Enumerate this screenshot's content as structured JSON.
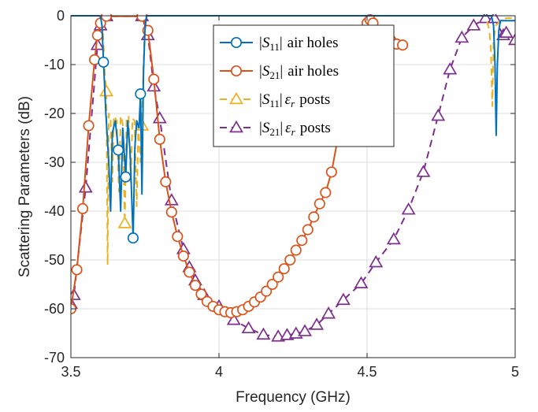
{
  "chart_data": {
    "type": "line",
    "xlabel": "Frequency (GHz)",
    "ylabel": "Scattering Parameters (dB)",
    "xlim": [
      3.5,
      5
    ],
    "ylim": [
      -70,
      0
    ],
    "xticks": [
      "3.5",
      "4",
      "4.5",
      "5"
    ],
    "yticks": [
      "0",
      "-10",
      "-20",
      "-30",
      "-40",
      "-50",
      "-60",
      "-70"
    ],
    "grid": true,
    "legend_position": "top-right",
    "series": [
      {
        "name": "|S11| air holes",
        "name_parts": {
          "sym": "S",
          "sub": "11",
          "rest": "air holes"
        },
        "color": "#0072BD",
        "dash": "solid",
        "marker": "circle",
        "markers": [
          [
            3.61,
            -9.5
          ],
          [
            3.66,
            -27.5
          ],
          [
            3.685,
            -33
          ],
          [
            3.71,
            -45.5
          ],
          [
            3.735,
            -16
          ]
        ],
        "values": [
          [
            3.5,
            0
          ],
          [
            3.595,
            0
          ],
          [
            3.6,
            -0.2
          ],
          [
            3.605,
            -2
          ],
          [
            3.61,
            -9.5
          ],
          [
            3.618,
            -20
          ],
          [
            3.628,
            -30
          ],
          [
            3.634,
            -40
          ],
          [
            3.64,
            -24
          ],
          [
            3.65,
            -21.5
          ],
          [
            3.66,
            -27.5
          ],
          [
            3.668,
            -40
          ],
          [
            3.675,
            -23
          ],
          [
            3.685,
            -33
          ],
          [
            3.692,
            -21.5
          ],
          [
            3.7,
            -28
          ],
          [
            3.71,
            -45.5
          ],
          [
            3.716,
            -27
          ],
          [
            3.722,
            -21.5
          ],
          [
            3.73,
            -23
          ],
          [
            3.735,
            -16
          ],
          [
            3.74,
            -36.5
          ],
          [
            3.745,
            -12
          ],
          [
            3.75,
            -3
          ],
          [
            3.755,
            0
          ],
          [
            4.92,
            0
          ],
          [
            4.927,
            -2
          ],
          [
            4.932,
            -10
          ],
          [
            4.936,
            -24.5
          ],
          [
            4.94,
            -10
          ],
          [
            4.945,
            -3
          ],
          [
            4.95,
            -1
          ],
          [
            5,
            -1
          ]
        ]
      },
      {
        "name": "|S21| air holes",
        "name_parts": {
          "sym": "S",
          "sub": "21",
          "rest": "air holes"
        },
        "color": "#D95319",
        "dash": "solid",
        "marker": "circle",
        "values": [
          [
            3.5,
            -60
          ],
          [
            3.52,
            -52
          ],
          [
            3.54,
            -39.5
          ],
          [
            3.56,
            -22.5
          ],
          [
            3.58,
            -9
          ],
          [
            3.59,
            -4
          ],
          [
            3.6,
            -1.5
          ],
          [
            3.62,
            -0.1
          ],
          [
            3.74,
            -0.1
          ],
          [
            3.76,
            -3
          ],
          [
            3.78,
            -13
          ],
          [
            3.8,
            -25.3
          ],
          [
            3.82,
            -34
          ],
          [
            3.84,
            -40.2
          ],
          [
            3.86,
            -45.2
          ],
          [
            3.88,
            -49.2
          ],
          [
            3.9,
            -52.5
          ],
          [
            3.92,
            -55.2
          ],
          [
            3.94,
            -57
          ],
          [
            3.96,
            -58.5
          ],
          [
            3.98,
            -59.5
          ],
          [
            4.0,
            -60.2
          ],
          [
            4.02,
            -60.6
          ],
          [
            4.04,
            -60.8
          ],
          [
            4.06,
            -60.6
          ],
          [
            4.08,
            -60.2
          ],
          [
            4.1,
            -59.5
          ],
          [
            4.12,
            -58.6
          ],
          [
            4.14,
            -57.6
          ],
          [
            4.16,
            -56.4
          ],
          [
            4.18,
            -55
          ],
          [
            4.2,
            -53.5
          ],
          [
            4.22,
            -51.8
          ],
          [
            4.24,
            -50
          ],
          [
            4.26,
            -48
          ],
          [
            4.28,
            -46
          ],
          [
            4.3,
            -43.8
          ],
          [
            4.32,
            -41.2
          ],
          [
            4.34,
            -38.5
          ],
          [
            4.36,
            -36.2
          ],
          [
            4.38,
            -32
          ],
          [
            4.4,
            -25.5
          ],
          [
            4.42,
            -21
          ],
          [
            4.44,
            -15
          ],
          [
            4.46,
            -9.5
          ],
          [
            4.48,
            -4
          ],
          [
            4.5,
            -1.5
          ],
          [
            4.51,
            -0.8
          ],
          [
            4.52,
            -1.5
          ],
          [
            4.54,
            -3
          ],
          [
            4.56,
            -4
          ],
          [
            4.58,
            -5
          ],
          [
            4.6,
            -5.8
          ],
          [
            4.62,
            -6
          ]
        ]
      },
      {
        "name": "|S11| εr posts",
        "name_parts": {
          "sym": "S",
          "sub": "11",
          "rest": "posts"
        },
        "color": "#EDB120",
        "dash": "dashed",
        "marker": "triangle",
        "markers": [
          [
            3.62,
            -15.5
          ],
          [
            3.682,
            -42.5
          ],
          [
            3.74,
            -22.5
          ]
        ],
        "values": [
          [
            3.5,
            0
          ],
          [
            3.6,
            0
          ],
          [
            3.608,
            -3
          ],
          [
            3.615,
            -12
          ],
          [
            3.62,
            -15.5
          ],
          [
            3.624,
            -51
          ],
          [
            3.628,
            -20
          ],
          [
            3.634,
            -21
          ],
          [
            3.64,
            -34
          ],
          [
            3.645,
            -20.5
          ],
          [
            3.655,
            -21.5
          ],
          [
            3.662,
            -36
          ],
          [
            3.668,
            -20.5
          ],
          [
            3.675,
            -22
          ],
          [
            3.682,
            -42.5
          ],
          [
            3.688,
            -21
          ],
          [
            3.695,
            -20.5
          ],
          [
            3.702,
            -34
          ],
          [
            3.708,
            -21
          ],
          [
            3.715,
            -21.5
          ],
          [
            3.722,
            -39
          ],
          [
            3.728,
            -22.5
          ],
          [
            3.735,
            -30
          ],
          [
            3.74,
            -22.5
          ],
          [
            3.745,
            -10
          ],
          [
            3.75,
            -2
          ],
          [
            3.755,
            0
          ],
          [
            4.9,
            0
          ],
          [
            4.913,
            -3
          ],
          [
            4.918,
            -7
          ],
          [
            4.923,
            -18.5
          ],
          [
            4.927,
            -5
          ],
          [
            4.935,
            -2
          ],
          [
            4.95,
            -1
          ],
          [
            4.97,
            -0.5
          ],
          [
            5,
            -0.5
          ]
        ]
      },
      {
        "name": "|S21| εr posts",
        "name_parts": {
          "sym": "S",
          "sub": "21",
          "rest": "posts"
        },
        "color": "#7E2F8E",
        "dash": "dashed",
        "marker": "triangle",
        "values": [
          [
            3.5,
            -59
          ],
          [
            3.51,
            -57.2
          ],
          [
            3.55,
            -35.2
          ],
          [
            3.59,
            -6
          ],
          [
            3.6,
            -2
          ],
          [
            3.62,
            -0.1
          ],
          [
            3.74,
            -0.1
          ],
          [
            3.76,
            -4
          ],
          [
            3.78,
            -14.5
          ],
          [
            3.8,
            -21
          ],
          [
            3.84,
            -37.8
          ],
          [
            3.88,
            -47.8
          ],
          [
            3.9,
            -51.5
          ],
          [
            3.92,
            -54.2
          ],
          [
            3.95,
            -57.2
          ],
          [
            4.0,
            -59.5
          ],
          [
            4.05,
            -62.3
          ],
          [
            4.1,
            -64
          ],
          [
            4.15,
            -65.3
          ],
          [
            4.2,
            -65.7
          ],
          [
            4.23,
            -65.4
          ],
          [
            4.26,
            -65.1
          ],
          [
            4.29,
            -64.6
          ],
          [
            4.33,
            -63.3
          ],
          [
            4.37,
            -61
          ],
          [
            4.42,
            -58.2
          ],
          [
            4.48,
            -54.8
          ],
          [
            4.53,
            -50.5
          ],
          [
            4.59,
            -45.8
          ],
          [
            4.64,
            -39.7
          ],
          [
            4.69,
            -32
          ],
          [
            4.74,
            -20.5
          ],
          [
            4.78,
            -11
          ],
          [
            4.82,
            -4.5
          ],
          [
            4.86,
            -2
          ],
          [
            4.9,
            -0.5
          ],
          [
            4.93,
            -0.5
          ],
          [
            4.96,
            -4
          ],
          [
            4.97,
            -3.5
          ],
          [
            5,
            -5
          ]
        ]
      }
    ]
  }
}
